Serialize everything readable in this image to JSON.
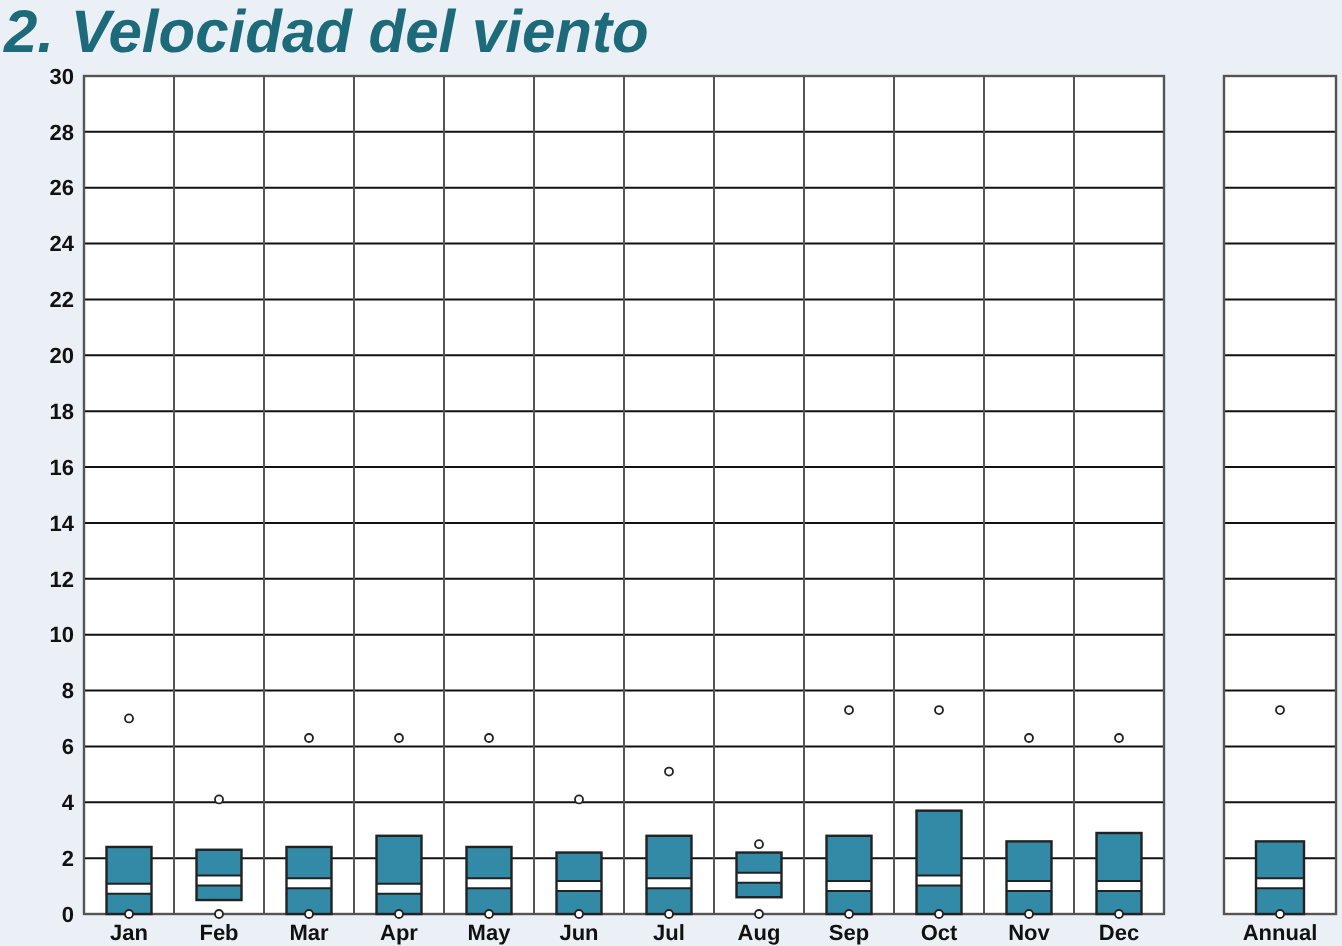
{
  "chart_data": [
    {
      "type": "box",
      "title": "2. Velocidad del viento",
      "categories": [
        "Jan",
        "Feb",
        "Mar",
        "Apr",
        "May",
        "Jun",
        "Jul",
        "Aug",
        "Sep",
        "Oct",
        "Nov",
        "Dec"
      ],
      "color": "#328aa6",
      "ylim": [
        0,
        30
      ],
      "yticks": [
        0,
        2,
        4,
        6,
        8,
        10,
        12,
        14,
        16,
        18,
        20,
        22,
        24,
        26,
        28,
        30
      ],
      "grid": true,
      "boxes": [
        {
          "low": 0,
          "q1": 0,
          "median": 0.9,
          "q3": 2.4,
          "high": 2.4,
          "outliers": [
            0,
            7
          ]
        },
        {
          "low": 0.5,
          "q1": 0.5,
          "median": 1.2,
          "q3": 2.3,
          "high": 2.3,
          "outliers": [
            0,
            4.1
          ]
        },
        {
          "low": 0,
          "q1": 0,
          "median": 1.1,
          "q3": 2.4,
          "high": 2.4,
          "outliers": [
            0,
            6.3
          ]
        },
        {
          "low": 0,
          "q1": 0,
          "median": 0.9,
          "q3": 2.8,
          "high": 2.8,
          "outliers": [
            0,
            6.3
          ]
        },
        {
          "low": 0,
          "q1": 0,
          "median": 1.1,
          "q3": 2.4,
          "high": 2.4,
          "outliers": [
            0,
            6.3
          ]
        },
        {
          "low": 0,
          "q1": 0,
          "median": 1,
          "q3": 2.2,
          "high": 2.2,
          "outliers": [
            0,
            4.1
          ]
        },
        {
          "low": 0,
          "q1": 0,
          "median": 1.1,
          "q3": 2.8,
          "high": 2.8,
          "outliers": [
            0,
            5.1
          ]
        },
        {
          "low": 0.6,
          "q1": 0.6,
          "median": 1.3,
          "q3": 2.2,
          "high": 2.2,
          "outliers": [
            0,
            2.5
          ]
        },
        {
          "low": 0,
          "q1": 0,
          "median": 1,
          "q3": 2.8,
          "high": 2.8,
          "outliers": [
            0,
            7.3
          ]
        },
        {
          "low": 0,
          "q1": 0,
          "median": 1.2,
          "q3": 3.7,
          "high": 3.7,
          "outliers": [
            0,
            7.3
          ]
        },
        {
          "low": 0,
          "q1": 0,
          "median": 1,
          "q3": 2.6,
          "high": 2.6,
          "outliers": [
            0,
            6.3
          ]
        },
        {
          "low": 0,
          "q1": 0,
          "median": 1,
          "q3": 2.9,
          "high": 2.9,
          "outliers": [
            0,
            6.3
          ]
        }
      ]
    },
    {
      "type": "box",
      "categories": [
        "Annual"
      ],
      "color": "#328aa6",
      "ylim": [
        0,
        30
      ],
      "yticks": [
        0,
        2,
        4,
        6,
        8,
        10,
        12,
        14,
        16,
        18,
        20,
        22,
        24,
        26,
        28,
        30
      ],
      "grid": true,
      "tick_labels": "x",
      "boxes": [
        {
          "low": 0,
          "q1": 0,
          "median": 1.1,
          "q3": 2.6,
          "high": 2.6,
          "outliers": [
            0,
            7.3
          ]
        }
      ]
    }
  ]
}
